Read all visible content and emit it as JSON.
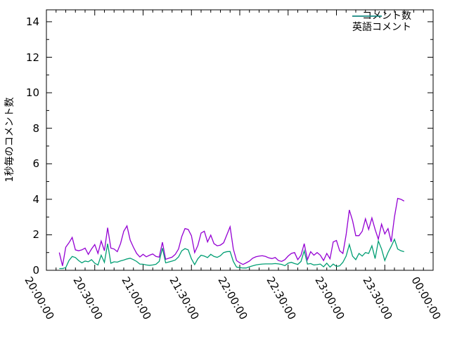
{
  "page": {
    "background": "#ffffff",
    "text_color": "#000000"
  },
  "chart_data": {
    "type": "line",
    "title": "",
    "xlabel": "",
    "ylabel": "1秒毎のコメント数",
    "grid": false,
    "legend_position": "top-right-inside",
    "x_range_minutes": [
      0,
      240
    ],
    "y_range": [
      0,
      14.67
    ],
    "x_ticks": [
      {
        "m": 0,
        "label": "20:00:00"
      },
      {
        "m": 30,
        "label": "20:30:00"
      },
      {
        "m": 60,
        "label": "21:00:00"
      },
      {
        "m": 90,
        "label": "21:30:00"
      },
      {
        "m": 120,
        "label": "22:00:00"
      },
      {
        "m": 150,
        "label": "22:30:00"
      },
      {
        "m": 180,
        "label": "23:00:00"
      },
      {
        "m": 210,
        "label": "23:30:00"
      },
      {
        "m": 240,
        "label": "00:00:00"
      }
    ],
    "y_ticks": [
      0,
      2,
      4,
      6,
      8,
      10,
      12,
      14
    ],
    "x_minor_step_minutes": 6,
    "y_minor_step": 1,
    "x_minutes": [
      8,
      10,
      12,
      14,
      16,
      18,
      20,
      22,
      24,
      26,
      28,
      30,
      32,
      34,
      36,
      38,
      40,
      42,
      44,
      46,
      48,
      50,
      52,
      54,
      56,
      58,
      60,
      62,
      64,
      66,
      68,
      70,
      72,
      74,
      76,
      78,
      80,
      82,
      84,
      86,
      88,
      90,
      92,
      94,
      96,
      98,
      100,
      102,
      104,
      106,
      108,
      110,
      112,
      114,
      116,
      118,
      120,
      122,
      124,
      126,
      128,
      130,
      132,
      134,
      136,
      138,
      140,
      142,
      144,
      146,
      148,
      150,
      152,
      154,
      156,
      158,
      160,
      162,
      164,
      166,
      168,
      170,
      172,
      174,
      176,
      178,
      180,
      182,
      184,
      186,
      188,
      190,
      192,
      194,
      196,
      198,
      200,
      202,
      204,
      206,
      208,
      210,
      212,
      214,
      216,
      218,
      220,
      222
    ],
    "series": [
      {
        "name": "コメント数",
        "color": "#9400d3",
        "values": [
          1.0,
          0.25,
          1.3,
          1.55,
          1.85,
          1.15,
          1.1,
          1.15,
          1.25,
          0.9,
          1.2,
          1.45,
          0.95,
          1.65,
          1.1,
          2.4,
          1.25,
          1.2,
          1.05,
          1.5,
          2.2,
          2.5,
          1.7,
          1.3,
          0.95,
          0.75,
          0.9,
          0.76,
          0.85,
          0.92,
          0.78,
          0.74,
          1.58,
          0.62,
          0.68,
          0.74,
          0.9,
          1.2,
          1.9,
          2.35,
          2.3,
          1.95,
          1.0,
          1.4,
          2.1,
          2.2,
          1.6,
          1.98,
          1.5,
          1.38,
          1.42,
          1.55,
          2.0,
          2.45,
          1.2,
          0.55,
          0.42,
          0.33,
          0.42,
          0.52,
          0.68,
          0.76,
          0.8,
          0.82,
          0.78,
          0.7,
          0.66,
          0.72,
          0.55,
          0.5,
          0.6,
          0.8,
          0.95,
          1.0,
          0.6,
          0.85,
          1.5,
          0.6,
          1.05,
          0.85,
          1.0,
          0.85,
          0.55,
          0.95,
          0.65,
          1.6,
          1.68,
          1.1,
          0.95,
          2.0,
          3.4,
          2.8,
          1.95,
          1.95,
          2.2,
          2.9,
          2.3,
          2.95,
          2.3,
          1.75,
          2.6,
          2.05,
          2.35,
          1.6,
          3.0,
          4.05,
          4.0,
          3.9
        ]
      },
      {
        "name": "英語コメント",
        "color": "#009e73",
        "values": [
          0.1,
          0.1,
          0.15,
          0.55,
          0.78,
          0.72,
          0.55,
          0.42,
          0.52,
          0.48,
          0.6,
          0.4,
          0.3,
          0.85,
          0.45,
          1.5,
          0.4,
          0.48,
          0.46,
          0.53,
          0.58,
          0.64,
          0.68,
          0.6,
          0.5,
          0.35,
          0.34,
          0.3,
          0.28,
          0.3,
          0.34,
          0.5,
          1.25,
          0.42,
          0.47,
          0.52,
          0.58,
          0.75,
          1.1,
          1.22,
          1.15,
          0.65,
          0.32,
          0.65,
          0.85,
          0.8,
          0.72,
          0.9,
          0.78,
          0.73,
          0.82,
          1.0,
          1.05,
          1.06,
          0.5,
          0.18,
          0.15,
          0.13,
          0.13,
          0.2,
          0.25,
          0.3,
          0.33,
          0.35,
          0.36,
          0.36,
          0.36,
          0.38,
          0.36,
          0.33,
          0.26,
          0.4,
          0.45,
          0.38,
          0.33,
          0.5,
          1.1,
          0.35,
          0.38,
          0.3,
          0.32,
          0.35,
          0.2,
          0.4,
          0.18,
          0.35,
          0.22,
          0.25,
          0.45,
          0.8,
          1.45,
          0.8,
          0.6,
          0.95,
          0.8,
          1.0,
          0.95,
          1.38,
          0.66,
          1.65,
          1.2,
          0.55,
          1.0,
          1.35,
          1.75,
          1.2,
          1.1,
          1.05
        ]
      }
    ]
  }
}
